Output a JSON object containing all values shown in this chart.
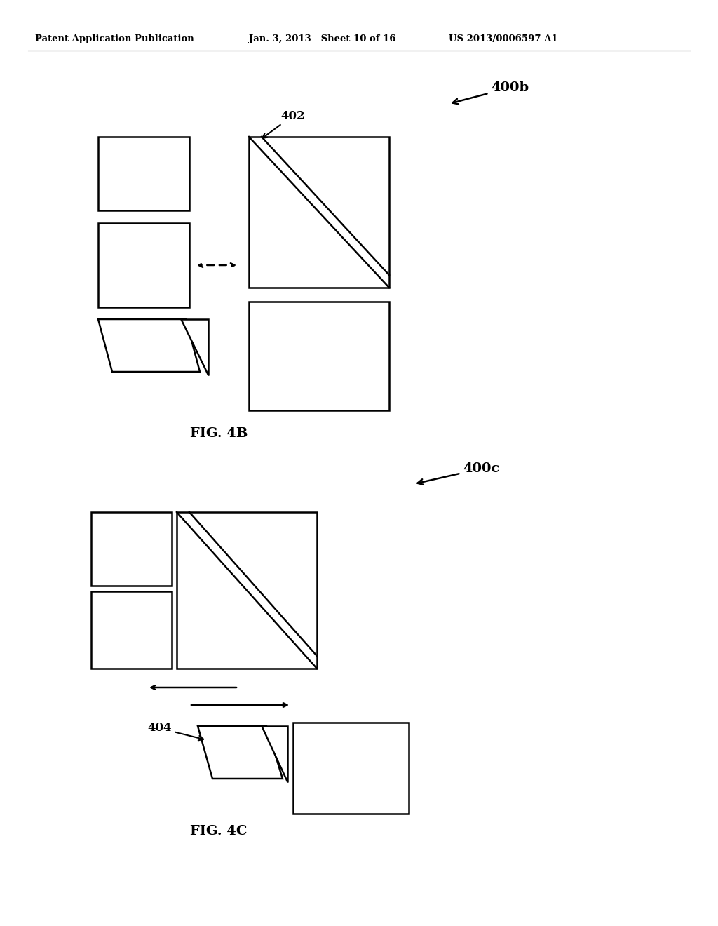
{
  "header_left": "Patent Application Publication",
  "header_mid": "Jan. 3, 2013   Sheet 10 of 16",
  "header_right": "US 2013/0006597 A1",
  "fig4b_label": "FIG. 4B",
  "fig4c_label": "FIG. 4C",
  "label_400b": "400b",
  "label_400c": "400c",
  "label_402": "402",
  "label_404": "404",
  "line_color": "#000000",
  "bg_color": "#ffffff",
  "line_width": 1.8
}
